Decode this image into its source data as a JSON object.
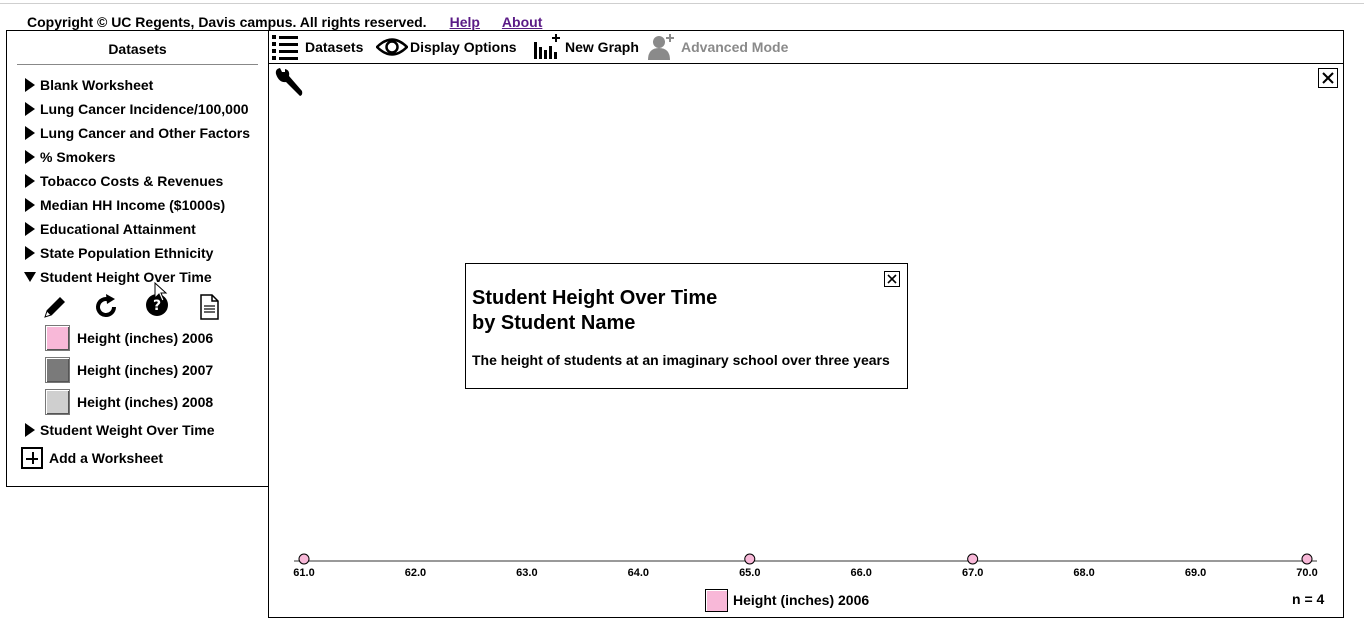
{
  "header": {
    "copyright": "Copyright © UC Regents, Davis campus. All rights reserved.",
    "help_link": "Help",
    "about_link": "About"
  },
  "sidebar": {
    "title": "Datasets",
    "datasets": [
      {
        "label": "Blank Worksheet",
        "expanded": false
      },
      {
        "label": "Lung Cancer Incidence/100,000",
        "expanded": false
      },
      {
        "label": "Lung Cancer and Other Factors",
        "expanded": false
      },
      {
        "label": "% Smokers",
        "expanded": false
      },
      {
        "label": "Tobacco Costs & Revenues",
        "expanded": false
      },
      {
        "label": "Median HH Income ($1000s)",
        "expanded": false
      },
      {
        "label": "Educational Attainment",
        "expanded": false
      },
      {
        "label": "State Population Ethnicity",
        "expanded": false
      },
      {
        "label": "Student Height Over Time",
        "expanded": true
      },
      {
        "label": "Student Weight Over Time",
        "expanded": false
      }
    ],
    "tools": [
      "pencil-icon",
      "refresh-icon",
      "help-circle-icon",
      "document-icon"
    ],
    "attributes": [
      {
        "label": "Height (inches) 2006",
        "color": "#f8b8d8"
      },
      {
        "label": "Height (inches) 2007",
        "color": "#7a7a7a"
      },
      {
        "label": "Height (inches) 2008",
        "color": "#cfcfcf"
      }
    ],
    "add_worksheet": "Add a Worksheet"
  },
  "toolbar": {
    "datasets": "Datasets",
    "display_options": "Display Options",
    "new_graph": "New Graph",
    "advanced_mode": "Advanced Mode"
  },
  "info_popup": {
    "title_line1": "Student Height Over Time",
    "title_line2": "by Student Name",
    "description": "The height of students at an imaginary school over three years"
  },
  "chart_data": {
    "type": "scatter",
    "xlim": [
      61.0,
      70.0
    ],
    "x_ticks": [
      "61.0",
      "62.0",
      "63.0",
      "64.0",
      "65.0",
      "66.0",
      "67.0",
      "68.0",
      "69.0",
      "70.0"
    ],
    "series": [
      {
        "name": "Height (inches) 2006",
        "color": "#f8b8d8",
        "x": [
          61.0,
          65.0,
          67.0,
          70.0
        ]
      }
    ],
    "legend_label": "Height (inches) 2006",
    "n_label": "n = 4"
  }
}
